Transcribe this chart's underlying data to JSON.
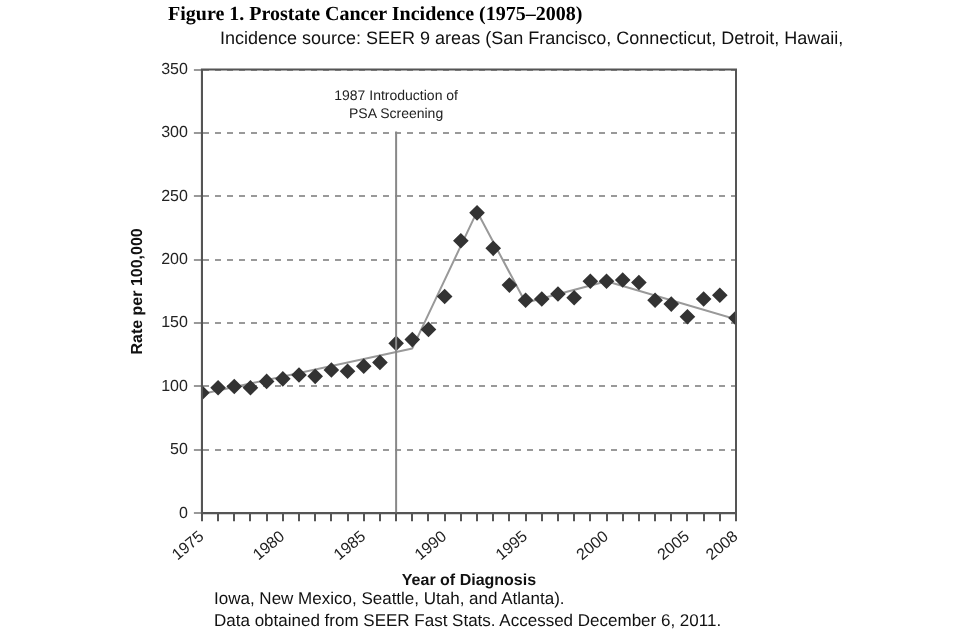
{
  "chart_data": {
    "type": "scatter",
    "title": "Figure 1.  Prostate Cancer Incidence (1975–2008)",
    "subtitle": "Incidence source: SEER 9 areas (San Francisco, Connecticut, Detroit, Hawaii,",
    "xlabel": "Year of Diagnosis",
    "ylabel": "Rate per 100,000",
    "annotations": [
      "Iowa, New Mexico, Seattle, Utah, and Atlanta).",
      "Data obtained from SEER Fast Stats. Accessed December 6, 2011."
    ],
    "series": [
      {
        "type": "scatter",
        "color": "#333333",
        "marker": "diamond",
        "x": [
          1975,
          1976,
          1977,
          1978,
          1979,
          1980,
          1981,
          1982,
          1983,
          1984,
          1985,
          1986,
          1987,
          1988,
          1989,
          1990,
          1991,
          1992,
          1993,
          1994,
          1995,
          1996,
          1997,
          1998,
          1999,
          2000,
          2001,
          2002,
          2003,
          2004,
          2005,
          2006,
          2007,
          2008
        ],
        "values": [
          95,
          99,
          100,
          99,
          104,
          106,
          109,
          108,
          113,
          112,
          116,
          119,
          134,
          137,
          145,
          171,
          215,
          237,
          209,
          180,
          168,
          169,
          173,
          170,
          183,
          183,
          184,
          182,
          168,
          165,
          155,
          169,
          172,
          154
        ]
      },
      {
        "type": "line",
        "color": "#999999",
        "marker": "none",
        "x": [
          1975,
          1988,
          1992,
          1995,
          2000,
          2008
        ],
        "values": [
          94,
          130,
          238,
          166,
          183,
          153
        ]
      }
    ],
    "xlim": [
      1975,
      2008
    ],
    "xticks": [
      1975,
      {
        "value": 1976,
        "label": null
      },
      {
        "value": 1977,
        "label": null
      },
      {
        "value": 1978,
        "label": null
      },
      {
        "value": 1979,
        "label": null
      },
      1980,
      {
        "value": 1981,
        "label": null
      },
      {
        "value": 1982,
        "label": null
      },
      {
        "value": 1983,
        "label": null
      },
      {
        "value": 1984,
        "label": null
      },
      1985,
      {
        "value": 1986,
        "label": null
      },
      {
        "value": 1987,
        "label": null
      },
      {
        "value": 1988,
        "label": null
      },
      {
        "value": 1989,
        "label": null
      },
      1990,
      {
        "value": 1991,
        "label": null
      },
      {
        "value": 1992,
        "label": null
      },
      {
        "value": 1993,
        "label": null
      },
      {
        "value": 1994,
        "label": null
      },
      1995,
      {
        "value": 1996,
        "label": null
      },
      {
        "value": 1997,
        "label": null
      },
      {
        "value": 1998,
        "label": null
      },
      {
        "value": 1999,
        "label": null
      },
      2000,
      {
        "value": 2001,
        "label": null
      },
      {
        "value": 2002,
        "label": null
      },
      {
        "value": 2003,
        "label": null
      },
      {
        "value": 2004,
        "label": null
      },
      2005,
      {
        "value": 2006,
        "label": null
      },
      {
        "value": 2007,
        "label": null
      },
      2008
    ],
    "ylim": [
      0,
      350
    ],
    "yticks": [
      0,
      50,
      100,
      150,
      200,
      250,
      300,
      350
    ],
    "grid": "y",
    "legend": false,
    "ref_lines": [
      {
        "axis": "x",
        "value": 1987,
        "label": "1987 Introduction of PSA Screening",
        "color": "#888888"
      }
    ]
  }
}
